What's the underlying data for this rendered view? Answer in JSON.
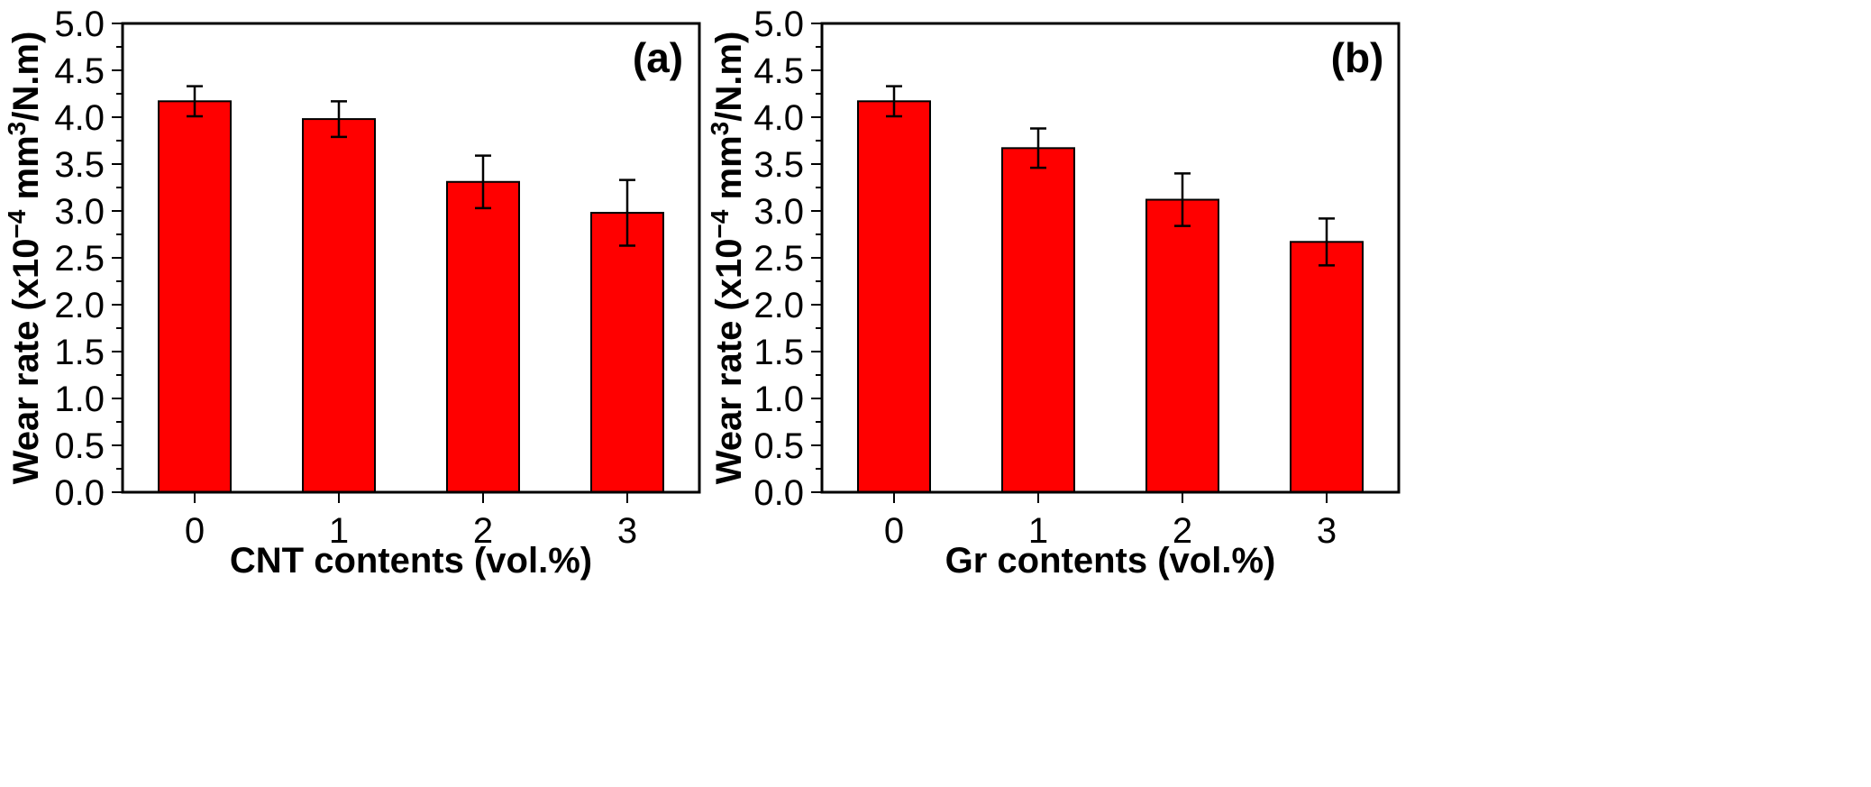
{
  "chart_data": [
    {
      "id": "a",
      "type": "bar",
      "panel_label": "(a)",
      "categories": [
        "0",
        "1",
        "2",
        "3"
      ],
      "values": [
        4.17,
        3.98,
        3.31,
        2.98
      ],
      "errors": [
        0.16,
        0.19,
        0.28,
        0.35
      ],
      "xlabel": "CNT contents (vol.%)",
      "ylabel": {
        "prefix": "Wear rate (x10",
        "exp": "−4",
        "mid": " mm",
        "exp2": "3",
        "suffix": "/N.m)"
      },
      "ylim": [
        0,
        5.0
      ],
      "yticks": [
        "0.0",
        "0.5",
        "1.0",
        "1.5",
        "2.0",
        "2.5",
        "3.0",
        "3.5",
        "4.0",
        "4.5",
        "5.0"
      ],
      "bar_color": "#ff0000",
      "grid": false
    },
    {
      "id": "b",
      "type": "bar",
      "panel_label": "(b)",
      "categories": [
        "0",
        "1",
        "2",
        "3"
      ],
      "values": [
        4.17,
        3.67,
        3.12,
        2.67
      ],
      "errors": [
        0.16,
        0.21,
        0.28,
        0.25
      ],
      "xlabel": "Gr contents (vol.%)",
      "ylabel": {
        "prefix": "Wear rate (x10",
        "exp": "−4",
        "mid": " mm",
        "exp2": "3",
        "suffix": "/N.m)"
      },
      "ylim": [
        0,
        5.0
      ],
      "yticks": [
        "0.0",
        "0.5",
        "1.0",
        "1.5",
        "2.0",
        "2.5",
        "3.0",
        "3.5",
        "4.0",
        "4.5",
        "5.0"
      ],
      "bar_color": "#ff0000",
      "grid": false
    }
  ]
}
